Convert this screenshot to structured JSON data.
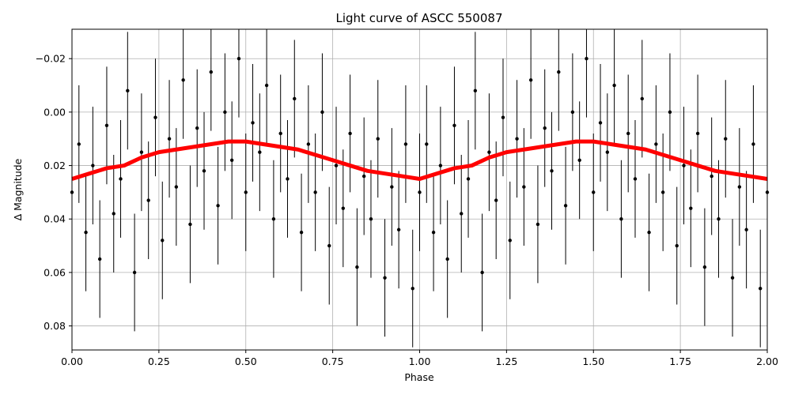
{
  "chart_data": {
    "type": "scatter",
    "title": "Light curve of ASCC 550087",
    "xlabel": "Phase",
    "ylabel": "Δ Magnitude",
    "xlim": [
      0.0,
      2.0
    ],
    "ylim": [
      0.089,
      -0.031
    ],
    "y_inverted": true,
    "grid": true,
    "x_ticks": [
      0.0,
      0.25,
      0.5,
      0.75,
      1.0,
      1.25,
      1.5,
      1.75,
      2.0
    ],
    "x_tick_labels": [
      "0.00",
      "0.25",
      "0.50",
      "0.75",
      "1.00",
      "1.25",
      "1.50",
      "1.75",
      "2.00"
    ],
    "y_ticks": [
      -0.02,
      0.0,
      0.02,
      0.04,
      0.06,
      0.08
    ],
    "y_tick_labels": [
      "−0.02",
      "0.00",
      "0.02",
      "0.04",
      "0.06",
      "0.08"
    ],
    "series": [
      {
        "kind": "points-with-errorbars",
        "color": "#000000",
        "points": [
          [
            0.0,
            0.03
          ],
          [
            0.02,
            0.012
          ],
          [
            0.04,
            0.045
          ],
          [
            0.06,
            0.02
          ],
          [
            0.08,
            0.055
          ],
          [
            0.1,
            0.005
          ],
          [
            0.12,
            0.038
          ],
          [
            0.14,
            0.025
          ],
          [
            0.16,
            -0.008
          ],
          [
            0.18,
            0.06
          ],
          [
            0.2,
            0.015
          ],
          [
            0.22,
            0.033
          ],
          [
            0.24,
            0.002
          ],
          [
            0.26,
            0.048
          ],
          [
            0.28,
            0.01
          ],
          [
            0.3,
            0.028
          ],
          [
            0.32,
            -0.012
          ],
          [
            0.34,
            0.042
          ],
          [
            0.36,
            0.006
          ],
          [
            0.38,
            0.022
          ],
          [
            0.4,
            -0.015
          ],
          [
            0.42,
            0.035
          ],
          [
            0.44,
            0.0
          ],
          [
            0.46,
            0.018
          ],
          [
            0.48,
            -0.02
          ],
          [
            0.5,
            0.03
          ],
          [
            0.52,
            0.004
          ],
          [
            0.54,
            0.015
          ],
          [
            0.56,
            -0.01
          ],
          [
            0.58,
            0.04
          ],
          [
            0.6,
            0.008
          ],
          [
            0.62,
            0.025
          ],
          [
            0.64,
            -0.005
          ],
          [
            0.66,
            0.045
          ],
          [
            0.68,
            0.012
          ],
          [
            0.7,
            0.03
          ],
          [
            0.72,
            0.0
          ],
          [
            0.74,
            0.05
          ],
          [
            0.76,
            0.02
          ],
          [
            0.78,
            0.036
          ],
          [
            0.8,
            0.008
          ],
          [
            0.82,
            0.058
          ],
          [
            0.84,
            0.024
          ],
          [
            0.86,
            0.04
          ],
          [
            0.88,
            0.01
          ],
          [
            0.9,
            0.062
          ],
          [
            0.92,
            0.028
          ],
          [
            0.94,
            0.044
          ],
          [
            0.96,
            0.012
          ],
          [
            0.98,
            0.066
          ],
          [
            1.0,
            0.03
          ],
          [
            1.02,
            0.012
          ],
          [
            1.04,
            0.045
          ],
          [
            1.06,
            0.02
          ],
          [
            1.08,
            0.055
          ],
          [
            1.1,
            0.005
          ],
          [
            1.12,
            0.038
          ],
          [
            1.14,
            0.025
          ],
          [
            1.16,
            -0.008
          ],
          [
            1.18,
            0.06
          ],
          [
            1.2,
            0.015
          ],
          [
            1.22,
            0.033
          ],
          [
            1.24,
            0.002
          ],
          [
            1.26,
            0.048
          ],
          [
            1.28,
            0.01
          ],
          [
            1.3,
            0.028
          ],
          [
            1.32,
            -0.012
          ],
          [
            1.34,
            0.042
          ],
          [
            1.36,
            0.006
          ],
          [
            1.38,
            0.022
          ],
          [
            1.4,
            -0.015
          ],
          [
            1.42,
            0.035
          ],
          [
            1.44,
            0.0
          ],
          [
            1.46,
            0.018
          ],
          [
            1.48,
            -0.02
          ],
          [
            1.5,
            0.03
          ],
          [
            1.52,
            0.004
          ],
          [
            1.54,
            0.015
          ],
          [
            1.56,
            -0.01
          ],
          [
            1.58,
            0.04
          ],
          [
            1.6,
            0.008
          ],
          [
            1.62,
            0.025
          ],
          [
            1.64,
            -0.005
          ],
          [
            1.66,
            0.045
          ],
          [
            1.68,
            0.012
          ],
          [
            1.7,
            0.03
          ],
          [
            1.72,
            0.0
          ],
          [
            1.74,
            0.05
          ],
          [
            1.76,
            0.02
          ],
          [
            1.78,
            0.036
          ],
          [
            1.8,
            0.008
          ],
          [
            1.82,
            0.058
          ],
          [
            1.84,
            0.024
          ],
          [
            1.86,
            0.04
          ],
          [
            1.88,
            0.01
          ],
          [
            1.9,
            0.062
          ],
          [
            1.92,
            0.028
          ],
          [
            1.94,
            0.044
          ],
          [
            1.96,
            0.012
          ],
          [
            1.98,
            0.066
          ],
          [
            2.0,
            0.03
          ]
        ],
        "error": 0.022
      },
      {
        "kind": "binned-curve",
        "color": "#ff0000",
        "x": [
          0.0,
          0.05,
          0.1,
          0.15,
          0.2,
          0.25,
          0.3,
          0.35,
          0.4,
          0.45,
          0.5,
          0.55,
          0.6,
          0.65,
          0.7,
          0.75,
          0.8,
          0.85,
          0.9,
          0.95,
          1.0,
          1.05,
          1.1,
          1.15,
          1.2,
          1.25,
          1.3,
          1.35,
          1.4,
          1.45,
          1.5,
          1.55,
          1.6,
          1.65,
          1.7,
          1.75,
          1.8,
          1.85,
          1.9,
          1.95,
          2.0
        ],
        "y": [
          0.025,
          0.023,
          0.021,
          0.02,
          0.017,
          0.015,
          0.014,
          0.013,
          0.012,
          0.011,
          0.011,
          0.012,
          0.013,
          0.014,
          0.016,
          0.018,
          0.02,
          0.022,
          0.023,
          0.024,
          0.025,
          0.023,
          0.021,
          0.02,
          0.017,
          0.015,
          0.014,
          0.013,
          0.012,
          0.011,
          0.011,
          0.012,
          0.013,
          0.014,
          0.016,
          0.018,
          0.02,
          0.022,
          0.023,
          0.024,
          0.025
        ]
      }
    ]
  }
}
